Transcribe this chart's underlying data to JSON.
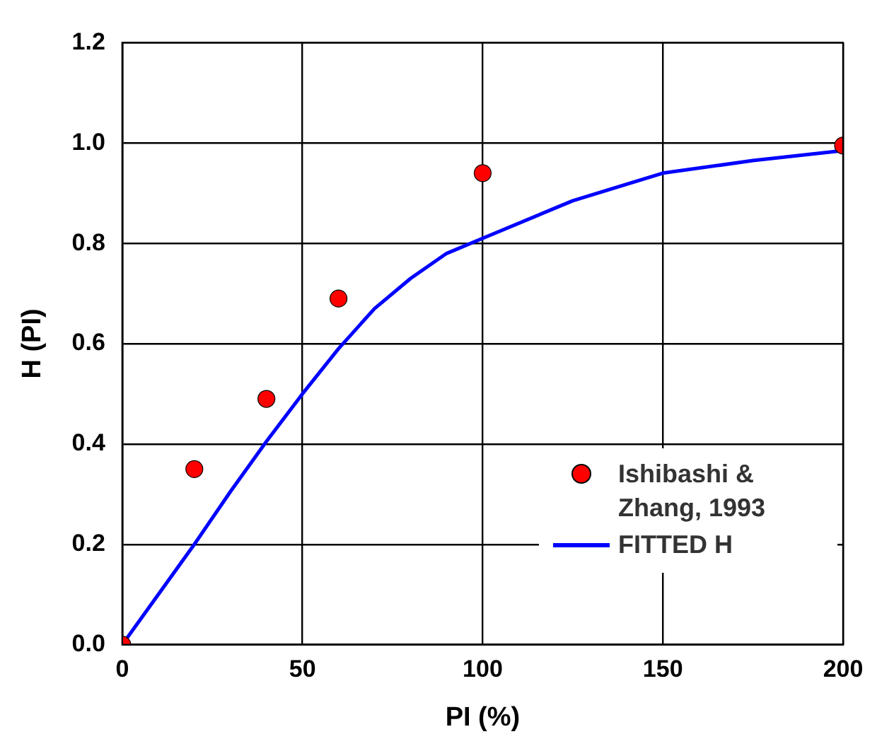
{
  "chart_data": {
    "type": "scatter",
    "xlabel": "PI (%)",
    "ylabel": "H (PI)",
    "xlim": [
      0,
      200
    ],
    "xticks": [
      0,
      50,
      100,
      150,
      200
    ],
    "ylim": [
      0,
      1.2
    ],
    "yticks": [
      {
        "value": 0,
        "label": "0.0"
      },
      {
        "value": 0.2,
        "label": "0.2"
      },
      {
        "value": 0.4,
        "label": "0.4"
      },
      {
        "value": 0.6,
        "label": "0.6"
      },
      {
        "value": 0.8,
        "label": "0.8"
      },
      {
        "value": 1,
        "label": "1.0"
      },
      {
        "value": 1.2,
        "label": "1.2"
      }
    ],
    "grid": true,
    "legend": "bottom right",
    "marker": "circle",
    "series": [
      {
        "name": "Ishibashi & Zhang, 1993",
        "color": "#ff0000",
        "x": [
          0,
          20,
          40,
          60,
          100,
          200
        ],
        "values": [
          0,
          0.35,
          0.49,
          0.69,
          0.94,
          0.995
        ]
      },
      {
        "name": "FITTED H",
        "type": "line",
        "color": "#0000ff",
        "line_style": "solid",
        "marker": "none",
        "x": [
          0,
          20,
          30,
          40,
          50,
          60,
          70,
          80,
          90,
          100,
          125,
          150,
          175,
          200
        ],
        "values": [
          0,
          0.2,
          0.305,
          0.405,
          0.5,
          0.59,
          0.67,
          0.73,
          0.78,
          0.81,
          0.885,
          0.94,
          0.965,
          0.985
        ]
      }
    ]
  }
}
